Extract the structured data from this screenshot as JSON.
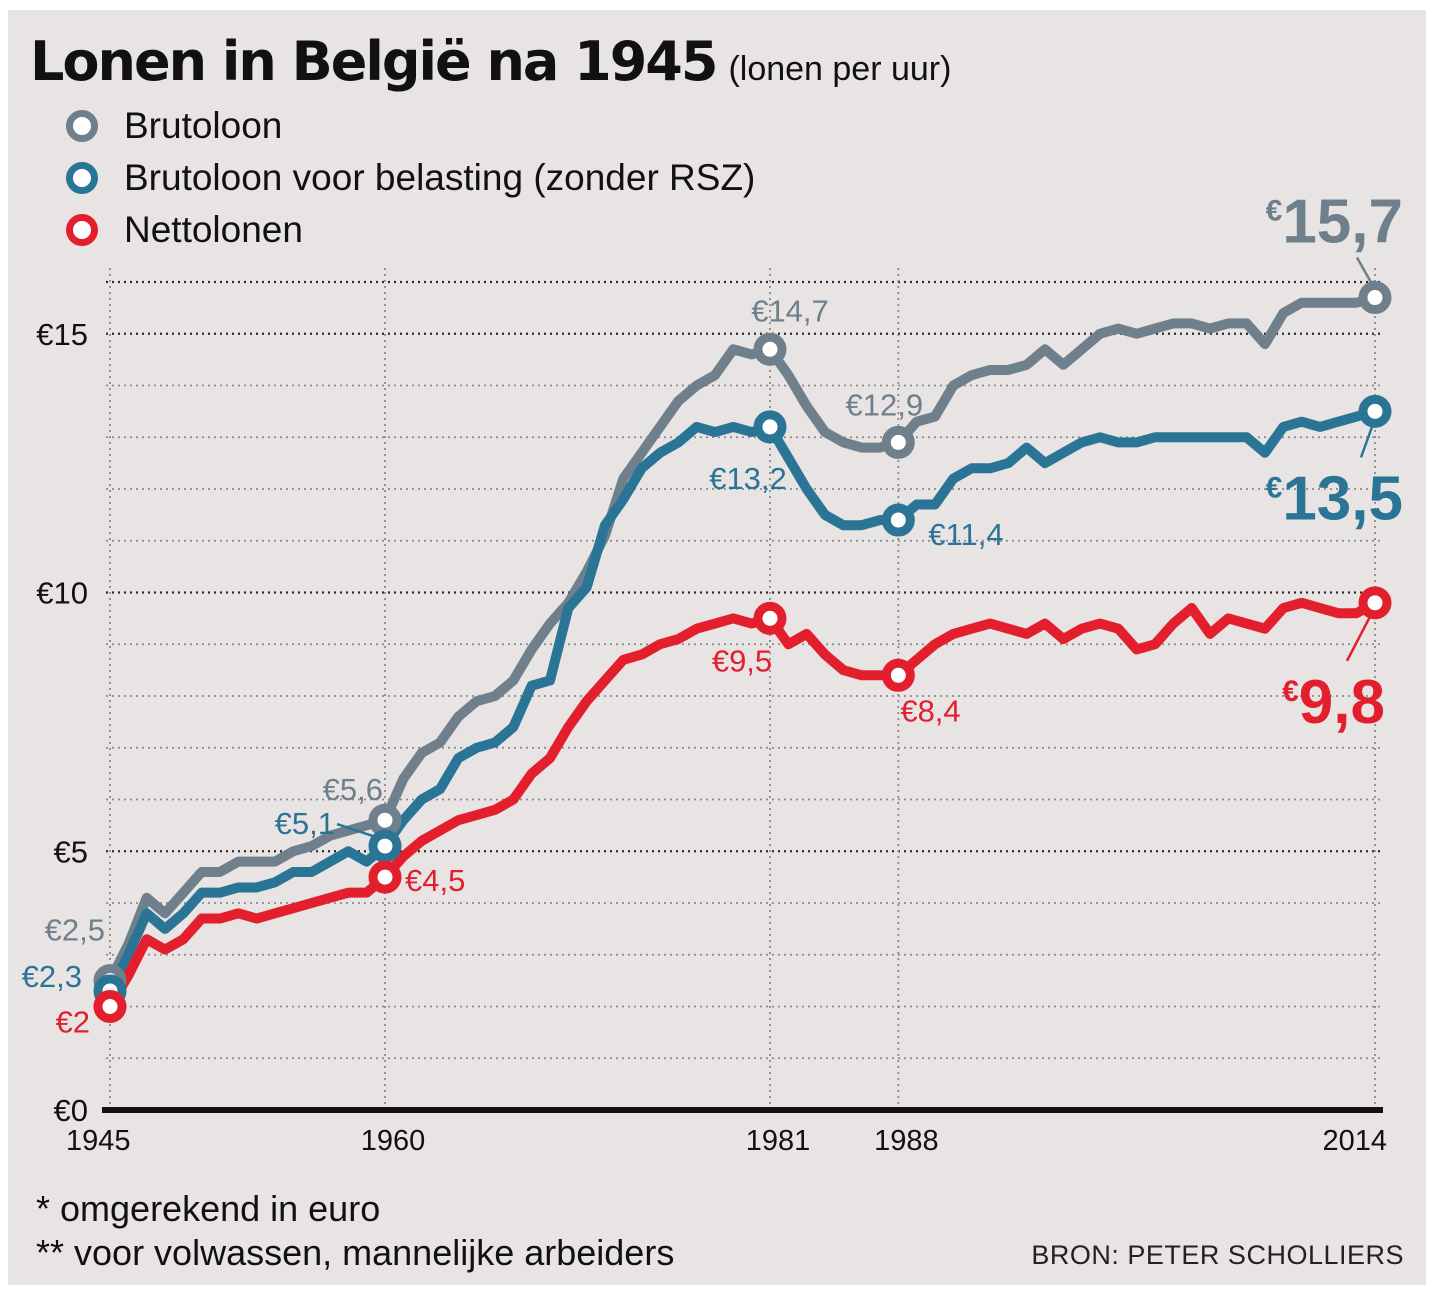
{
  "title": "Lonen in België na 1945",
  "subtitle": "(lonen per uur)",
  "legend": [
    {
      "label": "Brutoloon",
      "color": "#6f808c"
    },
    {
      "label": "Brutoloon voor belasting (zonder RSZ)",
      "color": "#2a7596"
    },
    {
      "label": "Nettolonen",
      "color": "#e31e2d"
    }
  ],
  "footnotes": [
    "* omgerekend in euro",
    "** voor volwassen, mannelijke arbeiders"
  ],
  "source": "BRON: PETER SCHOLLIERS",
  "chart_data": {
    "type": "line",
    "title": "Lonen in België na 1945 (lonen per uur)",
    "xlabel": "",
    "ylabel": "",
    "xlim": [
      1945,
      2014
    ],
    "ylim": [
      0,
      16
    ],
    "grid": true,
    "legend_position": "top-left",
    "x_ticks": [
      1945,
      1960,
      1981,
      1988,
      2014
    ],
    "x_tick_labels": [
      "1945",
      "1960",
      "1981",
      "1988",
      "2014"
    ],
    "y_ticks": [
      0,
      5,
      10,
      15
    ],
    "y_tick_labels": [
      "€0",
      "€5",
      "€10",
      "€15"
    ],
    "x": [
      1945,
      1946,
      1947,
      1948,
      1949,
      1950,
      1951,
      1952,
      1953,
      1954,
      1955,
      1956,
      1957,
      1958,
      1959,
      1960,
      1961,
      1962,
      1963,
      1964,
      1965,
      1966,
      1967,
      1968,
      1969,
      1970,
      1971,
      1972,
      1973,
      1974,
      1975,
      1976,
      1977,
      1978,
      1979,
      1980,
      1981,
      1982,
      1983,
      1984,
      1985,
      1986,
      1987,
      1988,
      1989,
      1990,
      1991,
      1992,
      1993,
      1994,
      1995,
      1996,
      1997,
      1998,
      1999,
      2000,
      2001,
      2002,
      2003,
      2004,
      2005,
      2006,
      2007,
      2008,
      2009,
      2010,
      2011,
      2012,
      2013,
      2014
    ],
    "series": [
      {
        "name": "Brutoloon",
        "color": "#6f808c",
        "values": [
          2.5,
          3.2,
          4.1,
          3.8,
          4.2,
          4.6,
          4.6,
          4.8,
          4.8,
          4.8,
          5.0,
          5.1,
          5.3,
          5.4,
          5.5,
          5.6,
          6.4,
          6.9,
          7.1,
          7.6,
          7.9,
          8.0,
          8.3,
          8.9,
          9.4,
          9.8,
          10.4,
          11.1,
          12.2,
          12.7,
          13.2,
          13.7,
          14.0,
          14.2,
          14.7,
          14.6,
          14.7,
          14.2,
          13.6,
          13.1,
          12.9,
          12.8,
          12.8,
          12.9,
          13.3,
          13.4,
          14.0,
          14.2,
          14.3,
          14.3,
          14.4,
          14.7,
          14.4,
          14.7,
          15.0,
          15.1,
          15.0,
          15.1,
          15.2,
          15.2,
          15.1,
          15.2,
          15.2,
          14.8,
          15.4,
          15.6,
          15.6,
          15.6,
          15.6,
          15.7
        ]
      },
      {
        "name": "Brutoloon voor belasting (zonder RSZ)",
        "color": "#2a7596",
        "values": [
          2.3,
          3.0,
          3.8,
          3.5,
          3.8,
          4.2,
          4.2,
          4.3,
          4.3,
          4.4,
          4.6,
          4.6,
          4.8,
          5.0,
          4.8,
          5.1,
          5.6,
          6.0,
          6.2,
          6.8,
          7.0,
          7.1,
          7.4,
          8.2,
          8.3,
          9.7,
          10.1,
          11.3,
          11.8,
          12.4,
          12.7,
          12.9,
          13.2,
          13.1,
          13.2,
          13.1,
          13.2,
          12.6,
          12.0,
          11.5,
          11.3,
          11.3,
          11.4,
          11.4,
          11.7,
          11.7,
          12.2,
          12.4,
          12.4,
          12.5,
          12.8,
          12.5,
          12.7,
          12.9,
          13.0,
          12.9,
          12.9,
          13.0,
          13.0,
          13.0,
          13.0,
          13.0,
          13.0,
          12.7,
          13.2,
          13.3,
          13.2,
          13.3,
          13.4,
          13.5
        ]
      },
      {
        "name": "Nettolonen",
        "color": "#e31e2d",
        "values": [
          2.0,
          2.6,
          3.3,
          3.1,
          3.3,
          3.7,
          3.7,
          3.8,
          3.7,
          3.8,
          3.9,
          4.0,
          4.1,
          4.2,
          4.2,
          4.5,
          4.9,
          5.2,
          5.4,
          5.6,
          5.7,
          5.8,
          6.0,
          6.5,
          6.8,
          7.4,
          7.9,
          8.3,
          8.7,
          8.8,
          9.0,
          9.1,
          9.3,
          9.4,
          9.5,
          9.4,
          9.5,
          9.0,
          9.2,
          8.8,
          8.5,
          8.4,
          8.4,
          8.4,
          8.7,
          9.0,
          9.2,
          9.3,
          9.4,
          9.3,
          9.2,
          9.4,
          9.1,
          9.3,
          9.4,
          9.3,
          8.9,
          9.0,
          9.4,
          9.7,
          9.2,
          9.5,
          9.4,
          9.3,
          9.7,
          9.8,
          9.7,
          9.6,
          9.6,
          9.8
        ]
      }
    ],
    "annotations": [
      {
        "series": "Brutoloon",
        "x": 1945,
        "y": 2.5,
        "text": "€2,5"
      },
      {
        "series": "Brutoloon voor belasting (zonder RSZ)",
        "x": 1945,
        "y": 2.3,
        "text": "€2,3"
      },
      {
        "series": "Nettolonen",
        "x": 1945,
        "y": 2.0,
        "text": "€2"
      },
      {
        "series": "Brutoloon",
        "x": 1960,
        "y": 5.6,
        "text": "€5,6"
      },
      {
        "series": "Brutoloon voor belasting (zonder RSZ)",
        "x": 1960,
        "y": 5.1,
        "text": "€5,1"
      },
      {
        "series": "Nettolonen",
        "x": 1960,
        "y": 4.5,
        "text": "€4,5"
      },
      {
        "series": "Brutoloon",
        "x": 1981,
        "y": 14.7,
        "text": "€14,7"
      },
      {
        "series": "Brutoloon voor belasting (zonder RSZ)",
        "x": 1981,
        "y": 13.2,
        "text": "€13,2"
      },
      {
        "series": "Nettolonen",
        "x": 1981,
        "y": 9.5,
        "text": "€9,5"
      },
      {
        "series": "Brutoloon",
        "x": 1988,
        "y": 12.9,
        "text": "€12,9"
      },
      {
        "series": "Brutoloon voor belasting (zonder RSZ)",
        "x": 1988,
        "y": 11.4,
        "text": "€11,4"
      },
      {
        "series": "Nettolonen",
        "x": 1988,
        "y": 8.4,
        "text": "€8,4"
      },
      {
        "series": "Brutoloon",
        "x": 2014,
        "y": 15.7,
        "text": "€15,7"
      },
      {
        "series": "Brutoloon voor belasting (zonder RSZ)",
        "x": 2014,
        "y": 13.5,
        "text": "€13,5"
      },
      {
        "series": "Nettolonen",
        "x": 2014,
        "y": 9.8,
        "text": "€9,8"
      }
    ]
  }
}
